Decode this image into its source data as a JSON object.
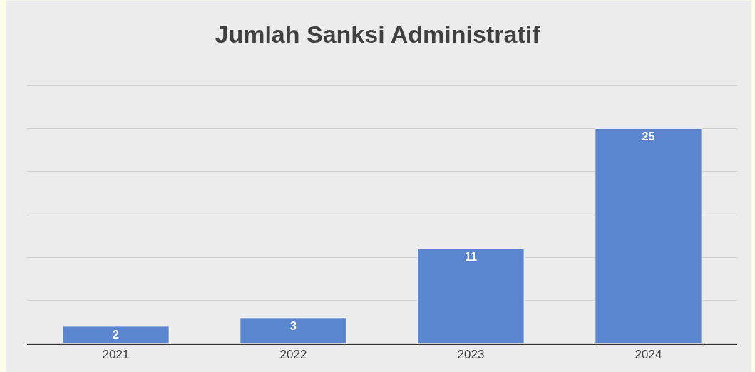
{
  "chart_data": {
    "type": "bar",
    "title": "Jumlah Sanksi Administratif",
    "categories": [
      "2021",
      "2022",
      "2023",
      "2024"
    ],
    "values": [
      2,
      3,
      11,
      25
    ],
    "color": "#5b86cf",
    "ylim": [
      0,
      30
    ],
    "yticks": [
      {
        "value": 0,
        "label": null
      },
      {
        "value": 5,
        "label": null
      },
      {
        "value": 10,
        "label": null
      },
      {
        "value": 15,
        "label": null
      },
      {
        "value": 20,
        "label": null
      },
      {
        "value": 25,
        "label": null
      },
      {
        "value": 30,
        "label": null
      }
    ],
    "grid": "y",
    "tick_labels": "x",
    "data_labels": true,
    "legend": false
  }
}
